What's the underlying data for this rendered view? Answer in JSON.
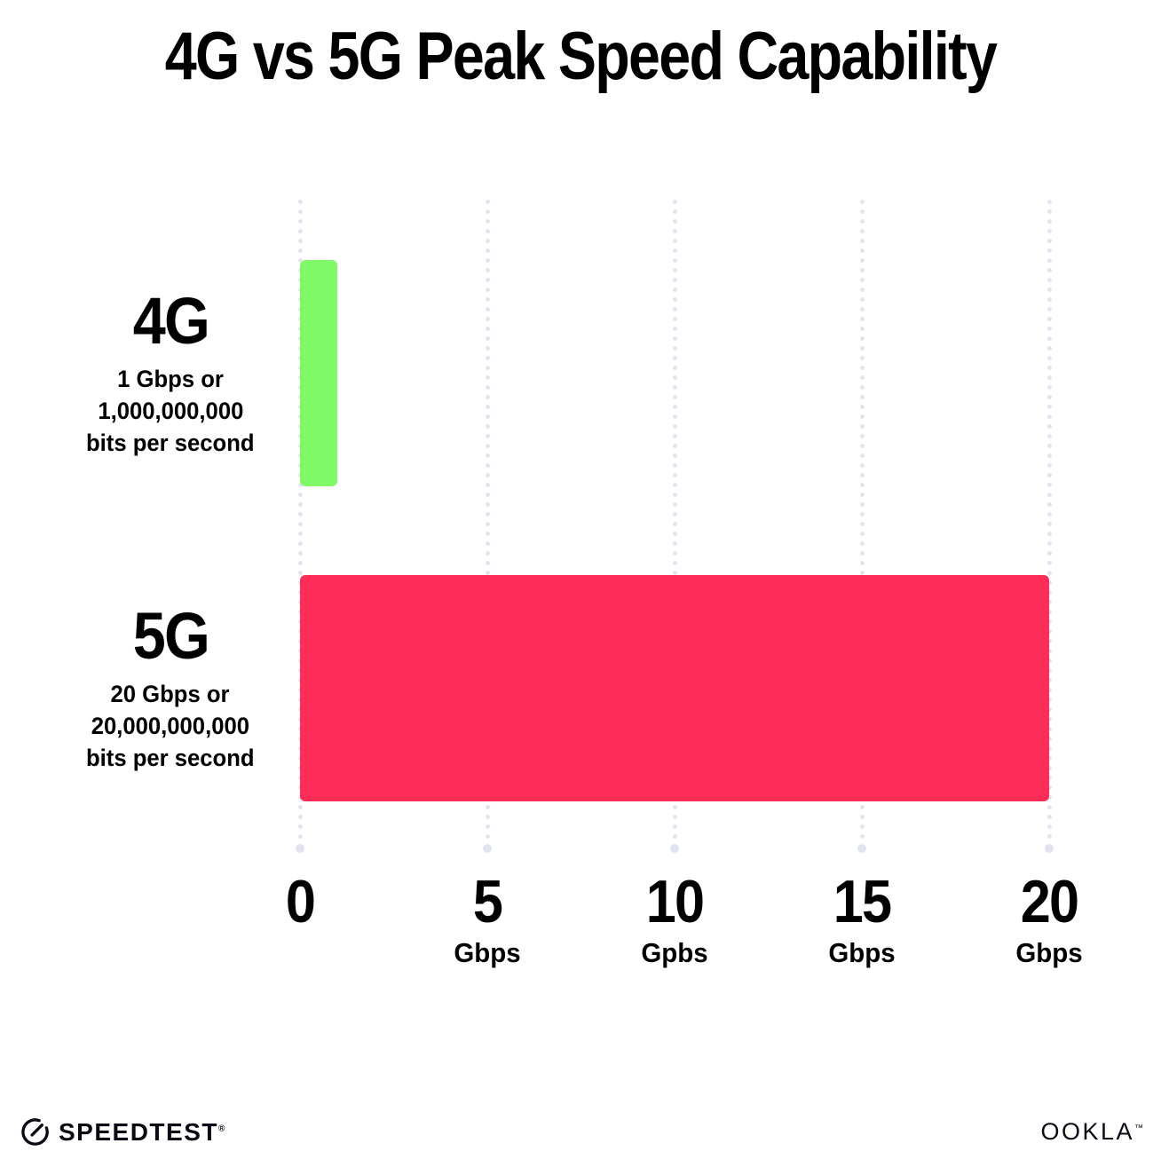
{
  "title": "4G vs 5G Peak Speed Capability",
  "chart_data": {
    "type": "bar",
    "orientation": "horizontal",
    "title": "4G vs 5G Peak Speed Capability",
    "categories": [
      "4G",
      "5G"
    ],
    "values": [
      1,
      20
    ],
    "bar_colors": [
      "#80FA66",
      "#FD2D57"
    ],
    "xlim": [
      0,
      20
    ],
    "grid": "dotted vertical gridlines at each tick, larger dot at bottom end",
    "legend": "none",
    "row_labels": [
      {
        "title": "4G",
        "lines": [
          "1 Gbps or",
          "1,000,000,000",
          "bits per second"
        ]
      },
      {
        "title": "5G",
        "lines": [
          "20 Gbps or",
          "20,000,000,000",
          "bits per second"
        ]
      }
    ],
    "x_ticks": [
      {
        "value": 0,
        "label": "0",
        "unit": ""
      },
      {
        "value": 5,
        "label": "5",
        "unit": "Gbps"
      },
      {
        "value": 10,
        "label": "10",
        "unit": "Gpbs"
      },
      {
        "value": 15,
        "label": "15",
        "unit": "Gbps"
      },
      {
        "value": 20,
        "label": "20",
        "unit": "Gbps"
      }
    ]
  },
  "colors": {
    "bar_4g": "#80FA66",
    "bar_5g": "#FD2D57",
    "grid_dot": "#E2E3F0",
    "text": "#000000",
    "background": "#FFFFFF"
  },
  "footer": {
    "speedtest_label": "SPEEDTEST",
    "speedtest_mark": "®",
    "ookla_label": "OOKLA",
    "ookla_mark": "™"
  }
}
